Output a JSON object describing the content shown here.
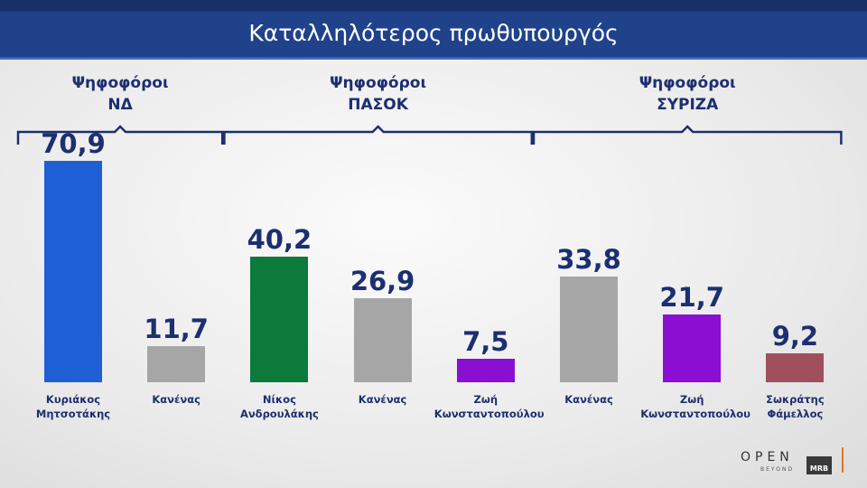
{
  "chart_data": {
    "type": "bar",
    "title": "Καταλληλότερος πρωθυπουργός",
    "groups": [
      {
        "name": "Ψηφοφόροι\nΝΔ",
        "categories": [
          "Κυριάκος\nΜητσοτάκης",
          "Κανένας"
        ],
        "values": [
          70.9,
          11.7
        ],
        "value_labels": [
          "70,9",
          "11,7"
        ],
        "colors": [
          "#1f5fd6",
          "#a6a6a6"
        ]
      },
      {
        "name": "Ψηφοφόροι\nΠΑΣΟΚ",
        "categories": [
          "Νίκος\nΑνδρουλάκης",
          "Κανένας",
          "Ζωή\nΚωνσταντοπούλου"
        ],
        "values": [
          40.2,
          26.9,
          7.5
        ],
        "value_labels": [
          "40,2",
          "26,9",
          "7,5"
        ],
        "colors": [
          "#0b7a3b",
          "#a6a6a6",
          "#8a0fd2"
        ]
      },
      {
        "name": "Ψηφοφόροι\nΣΥΡΙΖΑ",
        "categories": [
          "Κανένας",
          "Ζωή\nΚωνσταντοπούλου",
          "Σωκράτης\nΦάμελλος"
        ],
        "values": [
          33.8,
          21.7,
          9.2
        ],
        "value_labels": [
          "33,8",
          "21,7",
          "9,2"
        ],
        "colors": [
          "#a6a6a6",
          "#8a0fd2",
          "#a0505d"
        ]
      }
    ]
  },
  "footer": {
    "logo": "OPEN",
    "logo_sub": "BEYOND",
    "logo2": "MRB"
  }
}
